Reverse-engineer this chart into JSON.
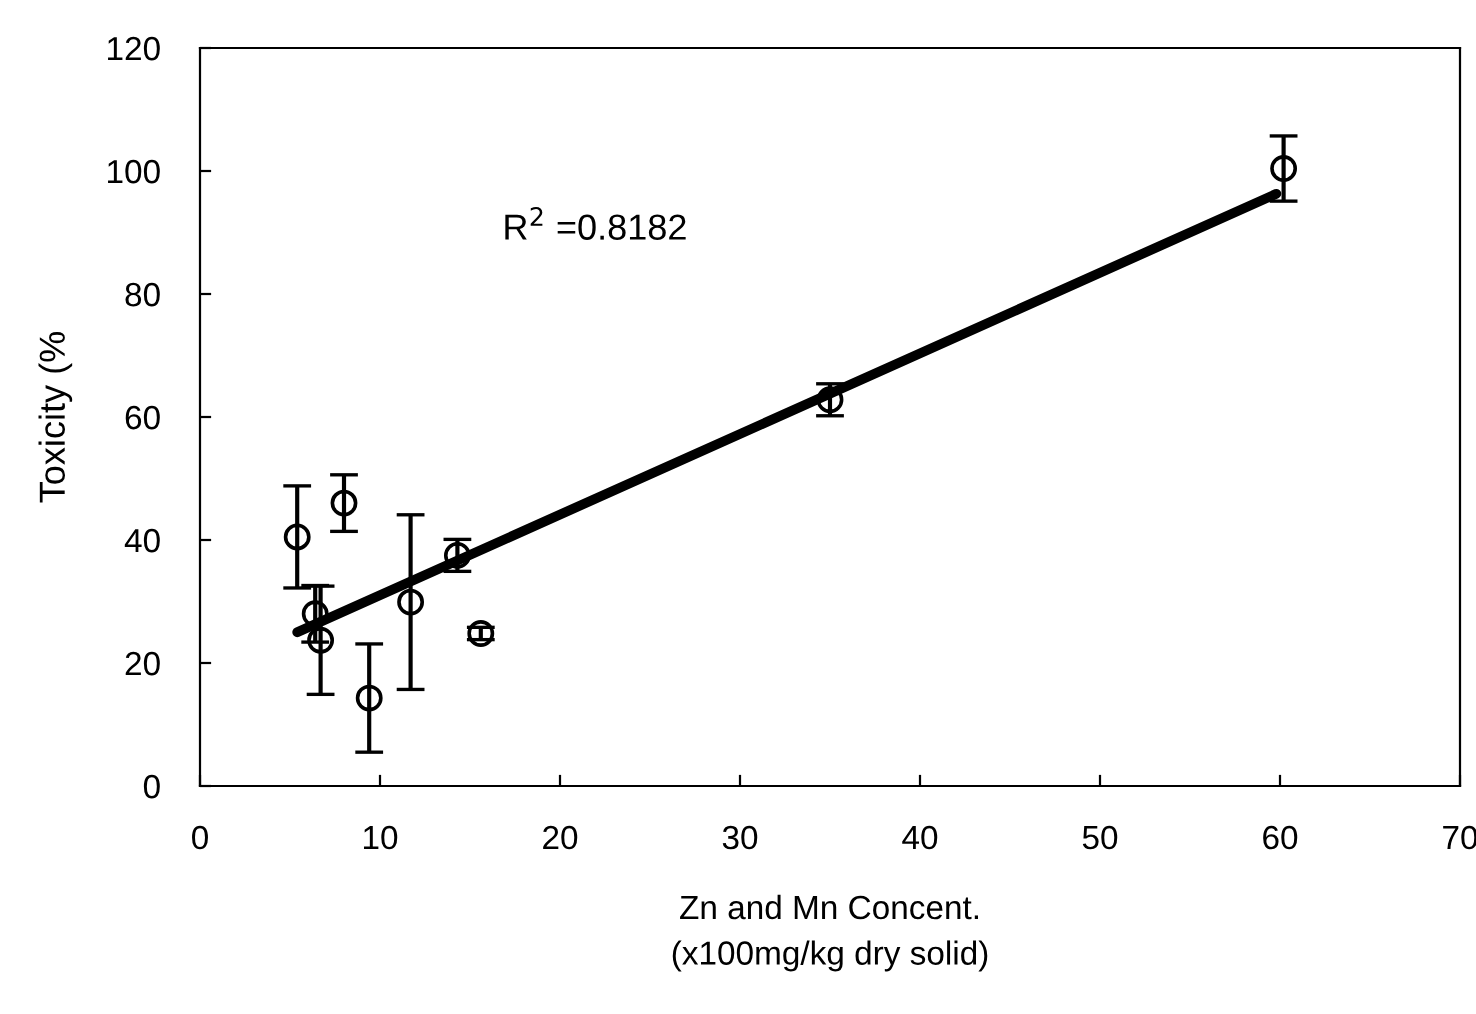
{
  "chart_data": {
    "type": "scatter",
    "xlabel": "Zn and Mn Concent.\n(x100mg/kg dry solid)",
    "ylabel": "Toxicity (%",
    "xlim": [
      0,
      70
    ],
    "xticks": [
      0,
      10,
      20,
      30,
      40,
      50,
      60,
      70
    ],
    "ylim": [
      0,
      120
    ],
    "yticks": [
      0,
      20,
      40,
      60,
      80,
      100,
      120
    ],
    "grid": false,
    "legend": false,
    "annotations": [
      "R$^{2}$ =0.8182"
    ],
    "series": [
      {
        "color": "#000000",
        "marker": "circle",
        "x": [
          5.4,
          8.0,
          6.4,
          6.7,
          9.4,
          11.7,
          14.3,
          15.6,
          35.0,
          60.2
        ],
        "values": [
          40.5,
          46,
          28,
          23.7,
          14.3,
          29.9,
          37.5,
          24.8,
          62.8,
          100.4
        ],
        "errors": [
          8.3,
          4.6,
          4.6,
          8.8,
          8.8,
          14.2,
          2.6,
          1,
          2.6,
          5.3
        ]
      },
      {
        "type": "line",
        "color": "#000000",
        "marker": "none",
        "line_style": "solid",
        "x": [
          5.4,
          59.8
        ],
        "values": [
          25.0,
          96.3
        ]
      }
    ]
  }
}
